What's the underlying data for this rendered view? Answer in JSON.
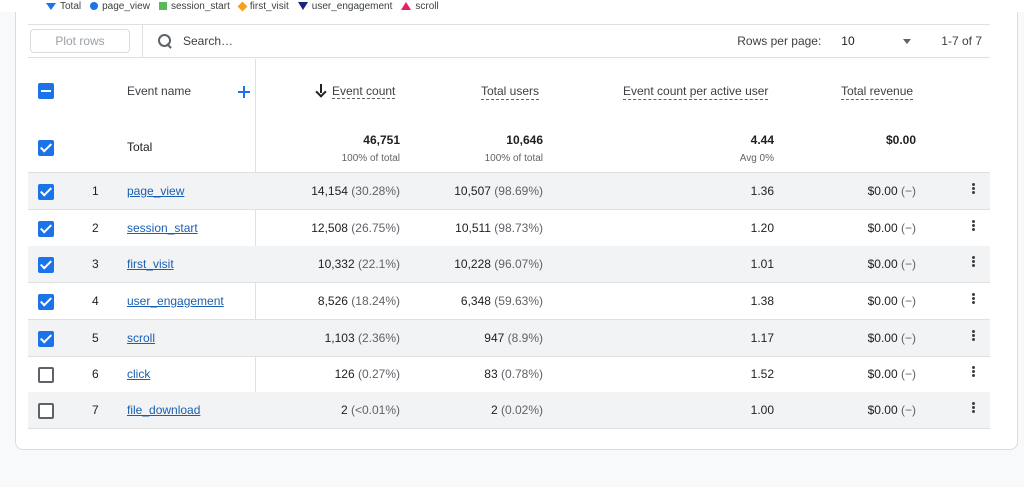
{
  "legend": [
    {
      "label": "Total",
      "shape": "triangle-down",
      "color": "#1a73e8"
    },
    {
      "label": "page_view",
      "shape": "circle",
      "color": "#1a73e8"
    },
    {
      "label": "session_start",
      "shape": "square",
      "color": "#5cb85c"
    },
    {
      "label": "first_visit",
      "shape": "diamond",
      "color": "#f4a020"
    },
    {
      "label": "user_engagement",
      "shape": "triangle-down",
      "color": "#1a237e"
    },
    {
      "label": "scroll",
      "shape": "triangle-up",
      "color": "#e91e63"
    }
  ],
  "toolbar": {
    "plot_rows_label": "Plot rows",
    "search_placeholder": "Search…",
    "rows_per_page_label": "Rows per page:",
    "rows_per_page_value": "10",
    "range_label": "1-7 of 7"
  },
  "columns": {
    "event_name": "Event name",
    "event_count": "Event count",
    "total_users": "Total users",
    "per_user": "Event count per active user",
    "revenue": "Total revenue"
  },
  "totals": {
    "label": "Total",
    "event_count": "46,751",
    "event_count_sub": "100% of total",
    "total_users": "10,646",
    "total_users_sub": "100% of total",
    "per_user": "4.44",
    "per_user_sub": "Avg 0%",
    "revenue": "$0.00"
  },
  "rows": [
    {
      "index": "1",
      "name": "page_view",
      "count": "14,154",
      "count_pct": "(30.28%)",
      "users": "10,507",
      "users_pct": "(98.69%)",
      "per_user": "1.36",
      "revenue": "$0.00",
      "revenue_pct": "(−)",
      "checked": true
    },
    {
      "index": "2",
      "name": "session_start",
      "count": "12,508",
      "count_pct": "(26.75%)",
      "users": "10,511",
      "users_pct": "(98.73%)",
      "per_user": "1.20",
      "revenue": "$0.00",
      "revenue_pct": "(−)",
      "checked": true
    },
    {
      "index": "3",
      "name": "first_visit",
      "count": "10,332",
      "count_pct": "(22.1%)",
      "users": "10,228",
      "users_pct": "(96.07%)",
      "per_user": "1.01",
      "revenue": "$0.00",
      "revenue_pct": "(−)",
      "checked": true
    },
    {
      "index": "4",
      "name": "user_engagement",
      "count": "8,526",
      "count_pct": "(18.24%)",
      "users": "6,348",
      "users_pct": "(59.63%)",
      "per_user": "1.38",
      "revenue": "$0.00",
      "revenue_pct": "(−)",
      "checked": true
    },
    {
      "index": "5",
      "name": "scroll",
      "count": "1,103",
      "count_pct": "(2.36%)",
      "users": "947",
      "users_pct": "(8.9%)",
      "per_user": "1.17",
      "revenue": "$0.00",
      "revenue_pct": "(−)",
      "checked": true
    },
    {
      "index": "6",
      "name": "click",
      "count": "126",
      "count_pct": "(0.27%)",
      "users": "83",
      "users_pct": "(0.78%)",
      "per_user": "1.52",
      "revenue": "$0.00",
      "revenue_pct": "(−)",
      "checked": false
    },
    {
      "index": "7",
      "name": "file_download",
      "count": "2",
      "count_pct": "(<0.01%)",
      "users": "2",
      "users_pct": "(0.02%)",
      "per_user": "1.00",
      "revenue": "$0.00",
      "revenue_pct": "(−)",
      "checked": false
    }
  ]
}
